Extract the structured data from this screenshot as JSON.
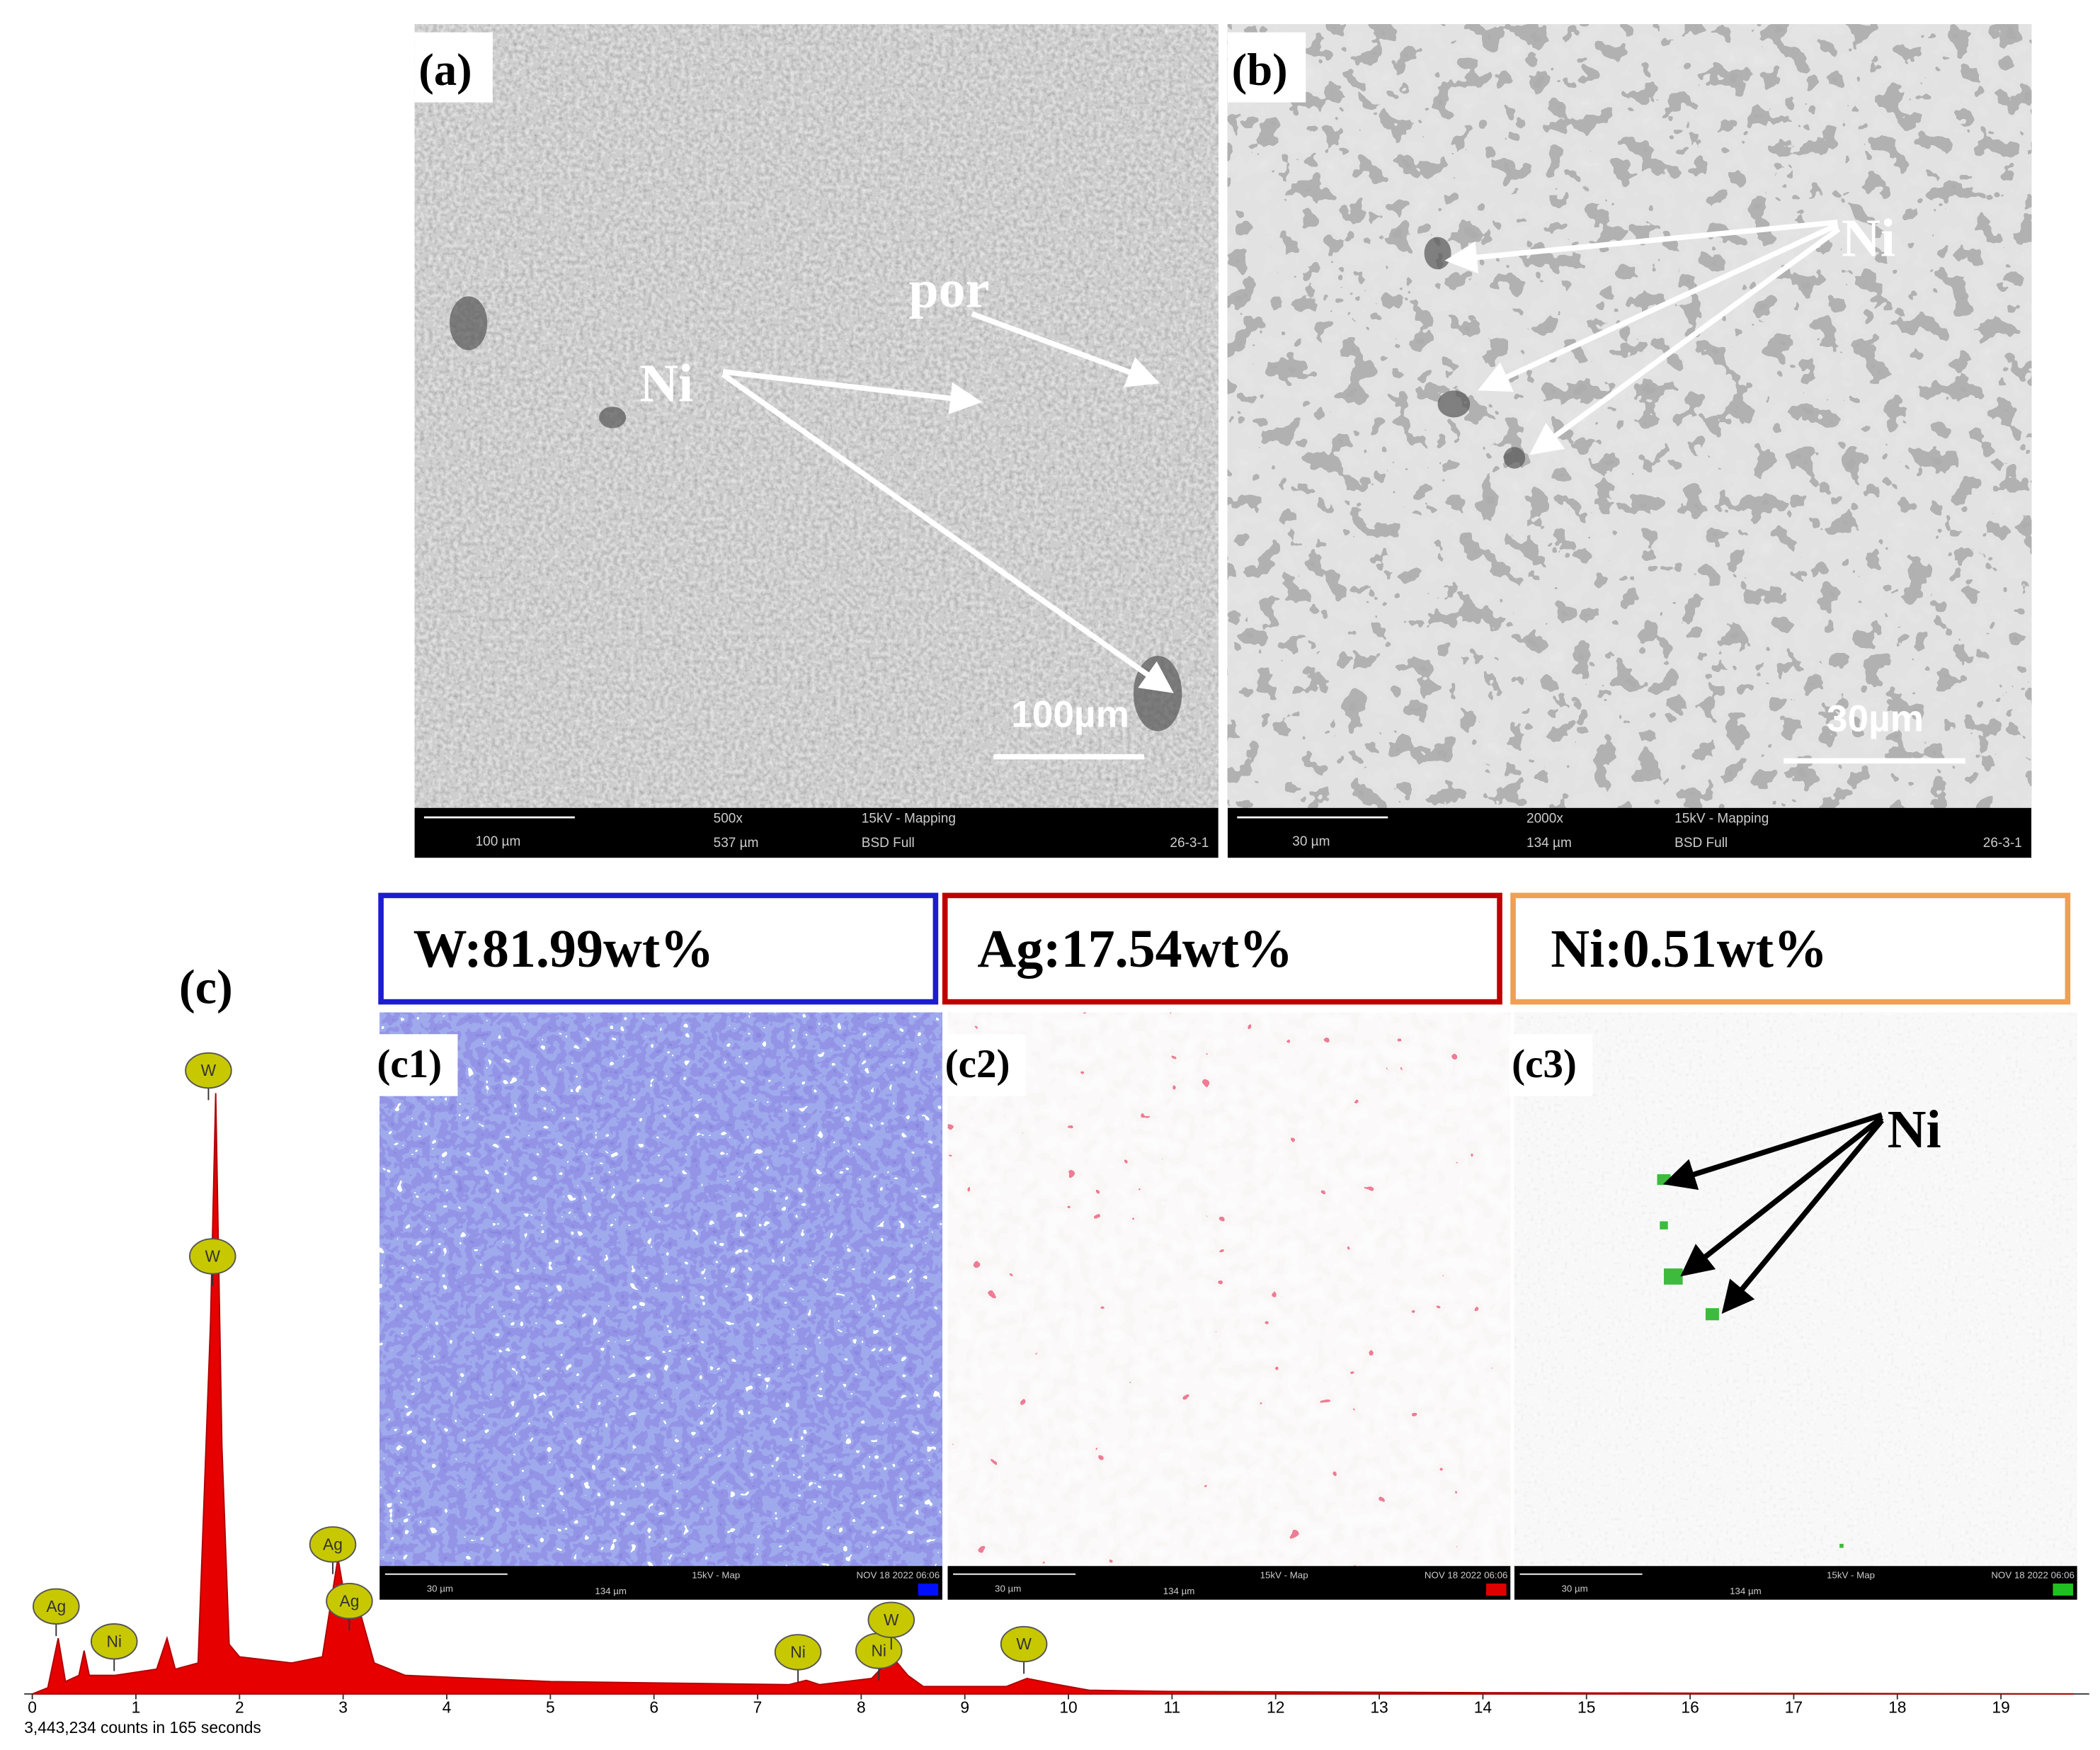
{
  "panels": {
    "a": {
      "label": "(a)",
      "annotations": [
        "por",
        "Ni"
      ],
      "scale_bar": "100µm",
      "info_bar": [
        "100 µm",
        "500x",
        "537 µm",
        "15kV - Mapping",
        "BSD Full",
        "26-3-1"
      ]
    },
    "b": {
      "label": "(b)",
      "annotations": [
        "Ni"
      ],
      "scale_bar": "30µm",
      "info_bar": [
        "30 µm",
        "2000x",
        "134 µm",
        "15kV - Mapping",
        "BSD Full",
        "26-3-1"
      ]
    },
    "c": {
      "label": "(c)"
    },
    "c1": {
      "label": "(c1)",
      "composition": "W:81.99wt%",
      "info_bar": [
        "30 µm",
        "134 µm",
        "15kV - Map",
        "NOV 18 2022 06:06"
      ]
    },
    "c2": {
      "label": "(c2)",
      "composition": "Ag:17.54wt%",
      "info_bar": [
        "30 µm",
        "134 µm",
        "15kV - Map",
        "NOV 18 2022 06:06"
      ]
    },
    "c3": {
      "label": "(c3)",
      "composition": "Ni:0.51wt%",
      "annotations": [
        "Ni"
      ],
      "info_bar": [
        "30 µm",
        "134 µm",
        "15kV - Map",
        "NOV 18 2022 06:06"
      ]
    }
  },
  "chart_data": {
    "type": "area",
    "x": [
      0,
      0.15,
      0.25,
      0.32,
      0.45,
      0.5,
      0.55,
      0.8,
      1.2,
      1.3,
      1.38,
      1.6,
      1.72,
      1.77,
      1.83,
      1.9,
      2.0,
      2.5,
      2.8,
      2.95,
      3.05,
      3.15,
      3.3,
      3.6,
      5,
      7.3,
      7.47,
      7.6,
      8.1,
      8.3,
      8.45,
      8.6,
      9.4,
      9.6,
      9.9,
      10.2,
      11,
      14,
      19.7
    ],
    "values": [
      0,
      1,
      9,
      2,
      3,
      7,
      3,
      3,
      4,
      9,
      4,
      5,
      60,
      97,
      40,
      8,
      6,
      5,
      6,
      22,
      12,
      14,
      5,
      3,
      2,
      1.5,
      2.2,
      1.5,
      2.5,
      6,
      3,
      1.2,
      1.2,
      2.5,
      1.5,
      0.6,
      0.4,
      0.2,
      0
    ],
    "color": "#e60000",
    "xlim": [
      0,
      19.8
    ],
    "xticks": [
      0,
      1,
      2,
      3,
      4,
      5,
      6,
      7,
      8,
      9,
      10,
      11,
      12,
      13,
      14,
      15,
      16,
      17,
      18,
      19
    ],
    "ylim": [
      0,
      100
    ],
    "peak_labels": [
      "Ag",
      "Ni",
      "W",
      "W",
      "Ag",
      "Ag",
      "Ni",
      "Ni",
      "W",
      "W"
    ],
    "peak_x": [
      0.23,
      0.79,
      1.7,
      1.74,
      2.9,
      3.06,
      7.39,
      8.17,
      8.29,
      9.57
    ],
    "footnote": "3,443,234 counts in 165 seconds"
  }
}
